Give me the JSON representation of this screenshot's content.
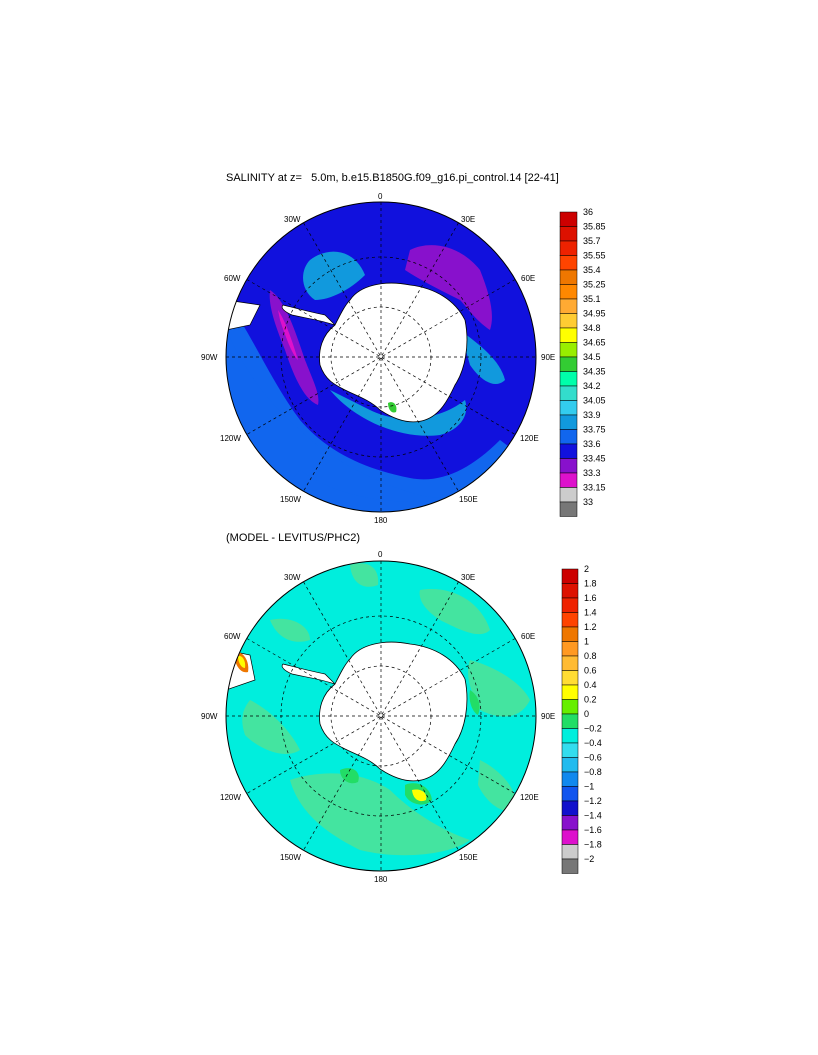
{
  "top_panel": {
    "title": "SALINITY at z=   5.0m, b.e15.B1850G.f09_g16.pi_control.14 [22-41]",
    "colorbar": {
      "labels": [
        "36",
        "35.85",
        "35.7",
        "35.55",
        "35.4",
        "35.25",
        "35.1",
        "34.95",
        "34.8",
        "34.65",
        "34.5",
        "34.35",
        "34.2",
        "34.05",
        "33.9",
        "33.75",
        "33.6",
        "33.45",
        "33.3",
        "33.15",
        "33"
      ],
      "colors": [
        "#cc0000",
        "#dd1100",
        "#ee2200",
        "#ff4400",
        "#ee7700",
        "#ff8800",
        "#ffaa33",
        "#ffcc33",
        "#ffff00",
        "#99ee00",
        "#33cc33",
        "#00ffaa",
        "#33ddcc",
        "#33ccee",
        "#1199dd",
        "#1166ee",
        "#1111dd",
        "#8811cc",
        "#dd11cc",
        "#cccccc",
        "#777777"
      ]
    }
  },
  "bottom_panel": {
    "title": "(MODEL - LEVITUS/PHC2)",
    "colorbar": {
      "labels": [
        "2",
        "1.8",
        "1.6",
        "1.4",
        "1.2",
        "1",
        "0.8",
        "0.6",
        "0.4",
        "0.2",
        "0",
        "−0.2",
        "−0.4",
        "−0.6",
        "−0.8",
        "−1",
        "−1.2",
        "−1.4",
        "−1.6",
        "−1.8",
        "−2"
      ],
      "colors": [
        "#cc0000",
        "#dd1100",
        "#ee2200",
        "#ff4400",
        "#ee7700",
        "#ff9922",
        "#ffbb33",
        "#ffdd33",
        "#ffff00",
        "#66ee00",
        "#22dd66",
        "#00eedd",
        "#33ddee",
        "#22bbee",
        "#1188ee",
        "#1155ee",
        "#1111cc",
        "#8811cc",
        "#dd11cc",
        "#cccccc",
        "#777777"
      ]
    }
  },
  "map_labels": {
    "lon_0": "0",
    "lon_30e": "30E",
    "lon_60e": "60E",
    "lon_90e": "90E",
    "lon_120e": "120E",
    "lon_150e": "150E",
    "lon_180": "180",
    "lon_150w": "150W",
    "lon_120w": "120W",
    "lon_90w": "90W",
    "lon_60w": "60W",
    "lon_30w": "30W"
  }
}
